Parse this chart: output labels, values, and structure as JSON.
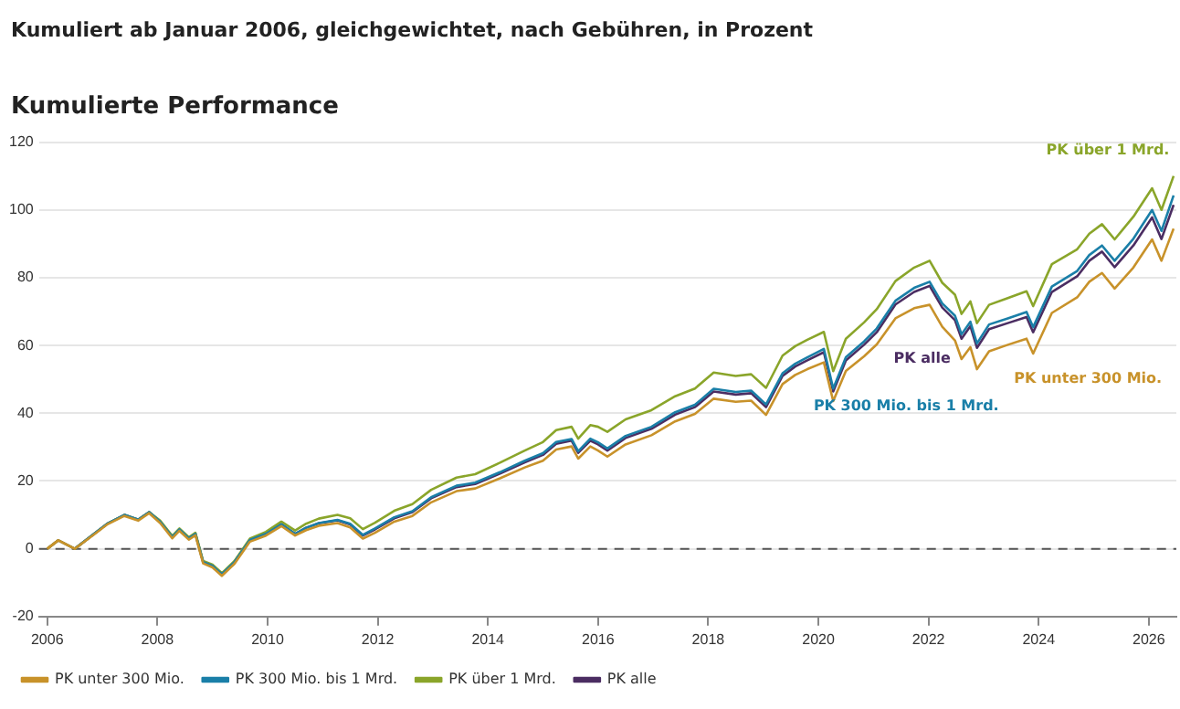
{
  "chart_data": {
    "type": "line",
    "title": "Kumulierte Performance",
    "subtitle": "Kumuliert ab Januar 2006, gleichgewichtet, nach Gebühren, in Prozent",
    "x": [
      2006.0,
      2006.2,
      2006.5,
      2006.85,
      2007.1,
      2007.4,
      2007.65,
      2007.85,
      2008.05,
      2008.27,
      2008.4,
      2008.57,
      2008.69,
      2008.83,
      2009.0,
      2009.17,
      2009.4,
      2009.68,
      2009.97,
      2010.25,
      2010.5,
      2010.7,
      2010.93,
      2011.27,
      2011.5,
      2011.73,
      2011.95,
      2012.3,
      2012.63,
      2012.97,
      2013.43,
      2013.77,
      2014.22,
      2014.67,
      2015.0,
      2015.24,
      2015.52,
      2015.64,
      2015.86,
      2016.0,
      2016.17,
      2016.5,
      2016.97,
      2017.4,
      2017.76,
      2018.1,
      2018.5,
      2018.78,
      2019.05,
      2019.35,
      2019.58,
      2019.8,
      2020.1,
      2020.27,
      2020.5,
      2020.83,
      2021.06,
      2021.4,
      2021.74,
      2022.02,
      2022.25,
      2022.48,
      2022.6,
      2022.76,
      2022.88,
      2023.1,
      2023.44,
      2023.78,
      2023.9,
      2024.24,
      2024.7,
      2024.92,
      2025.15,
      2025.38,
      2025.72,
      2026.06,
      2026.23,
      2026.45
    ],
    "series": [
      {
        "name": "PK unter 300 Mio.",
        "color": "#c8922a",
        "values": [
          0,
          2.5,
          0,
          4.2,
          7.3,
          9.7,
          8.3,
          10.5,
          7.6,
          3.1,
          5.3,
          2.7,
          4,
          -4.3,
          -5.5,
          -8,
          -4.4,
          2.1,
          3.9,
          6.7,
          3.9,
          5.5,
          6.8,
          7.6,
          6.3,
          3,
          4.7,
          8,
          9.7,
          13.7,
          17,
          17.8,
          20.8,
          24,
          26,
          29.3,
          30.2,
          26.6,
          30.2,
          29,
          27.2,
          30.8,
          33.5,
          37.6,
          39.8,
          44.3,
          43.4,
          43.7,
          39.5,
          48.6,
          51.3,
          53,
          55,
          43.6,
          52.5,
          56.8,
          60.3,
          68,
          71,
          72,
          65.5,
          61.5,
          56,
          59.5,
          53,
          58.3,
          60.2,
          62,
          57.6,
          69.6,
          74.2,
          78.8,
          81.4,
          76.8,
          83,
          91.3,
          85,
          94.5
        ]
      },
      {
        "name": "PK 300 Mio. bis 1 Mrd.",
        "color": "#1a7fa8",
        "values": [
          null,
          null,
          0,
          4.4,
          7.5,
          10,
          8.6,
          10.8,
          8,
          3.5,
          5.7,
          3.1,
          4.4,
          -3.9,
          -5,
          -7.5,
          -3.9,
          2.6,
          4.4,
          7.2,
          4.4,
          6.2,
          7.6,
          8.5,
          7.4,
          4.1,
          6,
          9.3,
          11.1,
          15.2,
          18.6,
          19.5,
          22.6,
          26,
          28.2,
          31.5,
          32.4,
          28.8,
          32.5,
          31.4,
          29.6,
          33.3,
          36,
          40.3,
          42.5,
          47.2,
          46.3,
          46.7,
          42.6,
          51.8,
          54.6,
          56.5,
          59,
          47.3,
          56.5,
          61.2,
          65,
          73.2,
          77,
          78.8,
          72.4,
          68.8,
          63.3,
          67,
          60.6,
          66.2,
          68,
          69.9,
          65.4,
          77.4,
          82,
          86.7,
          89.5,
          85,
          91.5,
          100,
          93.8,
          104.3
        ]
      },
      {
        "name": "PK über 1 Mrd.",
        "color": "#8aa52a",
        "values": [
          0,
          2.5,
          0,
          4.4,
          7.5,
          10,
          8.6,
          10.8,
          8.3,
          3.8,
          6,
          3.4,
          4.7,
          -3.6,
          -4.7,
          -7.2,
          -3.6,
          3,
          5,
          8,
          5.4,
          7.4,
          8.9,
          10,
          9,
          5.8,
          7.7,
          11.2,
          13.2,
          17.4,
          21,
          22,
          25.4,
          29,
          31.5,
          35,
          36,
          32.5,
          36.5,
          36,
          34.5,
          38.2,
          40.9,
          45,
          47.3,
          52,
          51,
          51.5,
          47.5,
          57,
          59.8,
          61.7,
          64,
          52.4,
          62,
          66.8,
          70.7,
          79,
          83,
          85,
          78.5,
          75,
          69.3,
          73,
          66.6,
          72,
          74,
          76,
          71.6,
          84,
          88.4,
          93,
          95.8,
          91.3,
          98,
          106.4,
          100,
          110
        ]
      },
      {
        "name": "PK alle",
        "color": "#4b2d62",
        "values": [
          0,
          2.5,
          0,
          4.4,
          7.5,
          10,
          8.6,
          10.8,
          8,
          3.5,
          5.7,
          3.1,
          4.4,
          -3.9,
          -5,
          -7.5,
          -3.9,
          2.6,
          4.4,
          7.2,
          4.4,
          6.2,
          7.5,
          8.4,
          7.2,
          3.9,
          5.7,
          9,
          10.8,
          14.9,
          18.2,
          19.1,
          22.2,
          25.5,
          27.7,
          31,
          31.9,
          28.3,
          31.9,
          30.8,
          29,
          32.7,
          35.4,
          39.6,
          41.8,
          46.4,
          45.5,
          45.9,
          41.8,
          51,
          53.8,
          55.6,
          58,
          46.4,
          55.6,
          60.2,
          63.9,
          72.1,
          75.8,
          77.6,
          71.2,
          67.5,
          62,
          65.7,
          59.3,
          64.8,
          66.6,
          68.4,
          63.9,
          75.8,
          80.4,
          85,
          87.7,
          83.1,
          89.5,
          97.8,
          91.4,
          101.5
        ]
      }
    ],
    "xlim": [
      2005.85,
      2026.5
    ],
    "xticks": [
      2006,
      2008,
      2010,
      2012,
      2014,
      2016,
      2018,
      2020,
      2022,
      2024,
      2026
    ],
    "ylim": [
      -20,
      120
    ],
    "yticks": [
      -20,
      0,
      20,
      40,
      60,
      80,
      100,
      120
    ],
    "ref_lines": [
      {
        "axis": "y",
        "value": 0,
        "color": "#555555",
        "line_style": "dashed"
      }
    ],
    "grid": "y",
    "legend": "bottom left",
    "line_style": "solid"
  }
}
